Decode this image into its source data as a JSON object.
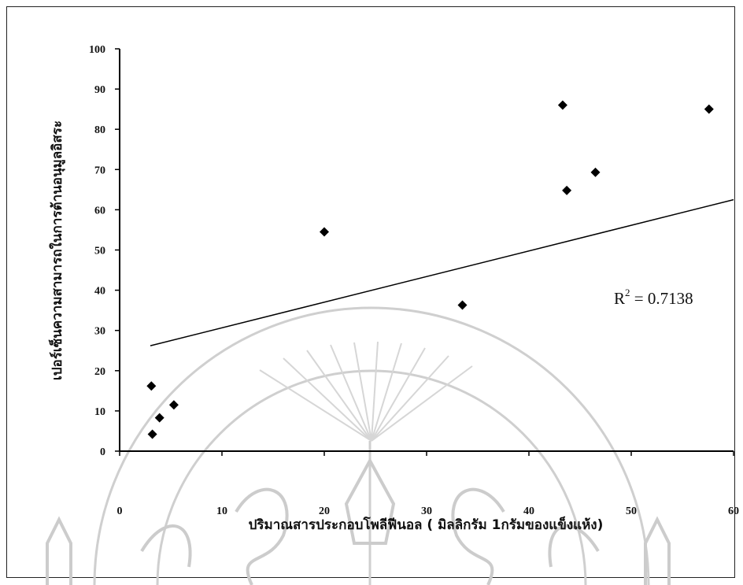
{
  "chart_data": {
    "type": "scatter",
    "xlabel": "ปริมาณสารประกอบโพลีฟีนอล ( มิลลิกรัม 1กรัมของแข็งแห้ง)",
    "ylabel": "เปอร์เซ็นความสามารถในการต้านอนุมูลอิสระ",
    "xlim": [
      0,
      60
    ],
    "ylim": [
      0,
      100
    ],
    "x_ticks": [
      "0",
      "10",
      "20",
      "30",
      "40",
      "50",
      "60"
    ],
    "y_ticks": [
      "0",
      "10",
      "20",
      "30",
      "40",
      "50",
      "60",
      "70",
      "80",
      "90",
      "100"
    ],
    "series": [
      {
        "points": [
          {
            "x": 3.1,
            "y": 16.2
          },
          {
            "x": 3.2,
            "y": 4.2
          },
          {
            "x": 3.9,
            "y": 8.3
          },
          {
            "x": 5.3,
            "y": 11.5
          },
          {
            "x": 20.0,
            "y": 54.5
          },
          {
            "x": 33.5,
            "y": 36.3
          },
          {
            "x": 43.3,
            "y": 86.0
          },
          {
            "x": 43.7,
            "y": 64.8
          },
          {
            "x": 46.5,
            "y": 69.3
          },
          {
            "x": 57.6,
            "y": 85.0
          }
        ],
        "marker": "diamond",
        "color": "#000000"
      }
    ],
    "trendline": {
      "type": "linear",
      "x": [
        3.0,
        60.0
      ],
      "y": [
        26.2,
        62.5
      ]
    },
    "annotation": {
      "text_main": "R",
      "text_sup": "2",
      "text_rest": " = 0.7138"
    },
    "grid": false,
    "legend": "none"
  },
  "watermark": {
    "color": "#c9c9c9"
  }
}
